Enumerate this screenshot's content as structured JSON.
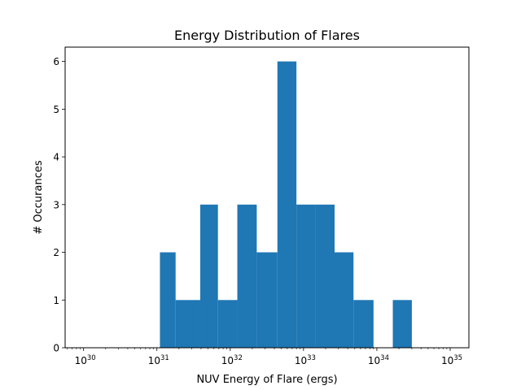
{
  "chart_data": {
    "type": "bar",
    "title": "Energy Distribution of Flares",
    "xlabel": "NUV Energy of Flare (ergs)",
    "ylabel": "# Occurances",
    "xscale": "log",
    "xlim": [
      5.6e+29,
      1.8e+35
    ],
    "ylim": [
      0,
      6.3
    ],
    "grid": false,
    "bar_color": "#1f77b4",
    "bins": [
      {
        "left": 1.1e+31,
        "right": 1.8e+31,
        "count": 2
      },
      {
        "left": 1.8e+31,
        "right": 3.9e+31,
        "count": 1
      },
      {
        "left": 3.9e+31,
        "right": 6.8e+31,
        "count": 3
      },
      {
        "left": 6.8e+31,
        "right": 1.25e+32,
        "count": 1
      },
      {
        "left": 1.25e+32,
        "right": 2.3e+32,
        "count": 3
      },
      {
        "left": 2.3e+32,
        "right": 4.4e+32,
        "count": 2
      },
      {
        "left": 4.4e+32,
        "right": 8e+32,
        "count": 6
      },
      {
        "left": 8e+32,
        "right": 1.45e+33,
        "count": 3
      },
      {
        "left": 1.45e+33,
        "right": 2.65e+33,
        "count": 3
      },
      {
        "left": 2.65e+33,
        "right": 4.8e+33,
        "count": 2
      },
      {
        "left": 4.8e+33,
        "right": 9e+33,
        "count": 1
      },
      {
        "left": 9e+33,
        "right": 1.65e+34,
        "count": 0
      },
      {
        "left": 1.65e+34,
        "right": 3e+34,
        "count": 1
      }
    ],
    "x_ticks": [
      {
        "value": 1e+30,
        "base": "10",
        "exp": "30"
      },
      {
        "value": 1e+31,
        "base": "10",
        "exp": "31"
      },
      {
        "value": 1e+32,
        "base": "10",
        "exp": "32"
      },
      {
        "value": 1e+33,
        "base": "10",
        "exp": "33"
      },
      {
        "value": 1e+34,
        "base": "10",
        "exp": "34"
      },
      {
        "value": 1e+35,
        "base": "10",
        "exp": "35"
      }
    ],
    "y_ticks": [
      {
        "value": 0,
        "label": "0"
      },
      {
        "value": 1,
        "label": "1"
      },
      {
        "value": 2,
        "label": "2"
      },
      {
        "value": 3,
        "label": "3"
      },
      {
        "value": 4,
        "label": "4"
      },
      {
        "value": 5,
        "label": "5"
      },
      {
        "value": 6,
        "label": "6"
      }
    ]
  }
}
